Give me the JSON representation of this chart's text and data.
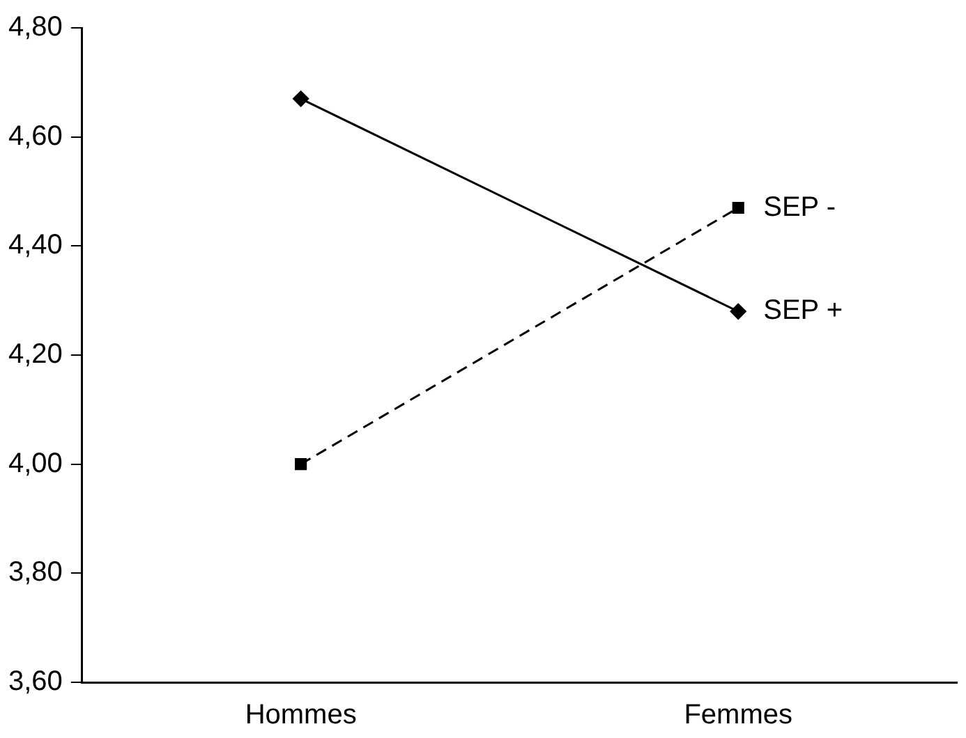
{
  "chart_data": {
    "type": "line",
    "categories": [
      "Hommes",
      "Femmes"
    ],
    "series": [
      {
        "name": "SEP -",
        "color": "#000000",
        "values": [
          4.0,
          4.47
        ],
        "marker": "square",
        "line_style": "dashed"
      },
      {
        "name": "SEP +",
        "color": "#000000",
        "values": [
          4.67,
          4.28
        ],
        "marker": "diamond",
        "line_style": "solid"
      }
    ],
    "ylim": [
      3.6,
      4.8
    ],
    "yticks": [
      {
        "value": 3.6,
        "label": "3,60"
      },
      {
        "value": 3.8,
        "label": "3,80"
      },
      {
        "value": 4.0,
        "label": "4,00"
      },
      {
        "value": 4.2,
        "label": "4,20"
      },
      {
        "value": 4.4,
        "label": "4,40"
      },
      {
        "value": 4.6,
        "label": "4,60"
      },
      {
        "value": 4.8,
        "label": "4,80"
      }
    ],
    "grid": false,
    "legend": false
  }
}
